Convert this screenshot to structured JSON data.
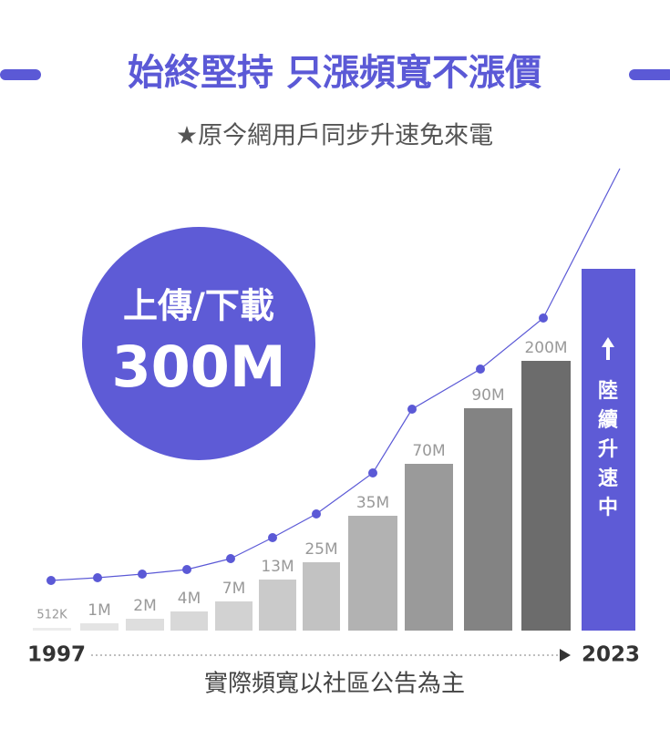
{
  "header": {
    "title": "始終堅持 只漲頻寬不漲價",
    "subtitle": "★原今網用戶同步升速免來電"
  },
  "badge": {
    "line1": "上傳/下載",
    "line2": "300M"
  },
  "bars": {
    "labels": [
      "512K",
      "1M",
      "2M",
      "4M",
      "7M",
      "13M",
      "25M",
      "35M",
      "70M",
      "90M",
      "200M"
    ]
  },
  "highlight": "陸續升速中",
  "timeline": {
    "start": "1997",
    "end": "2023"
  },
  "footnote": "實際頻寬以社區公告為主"
}
